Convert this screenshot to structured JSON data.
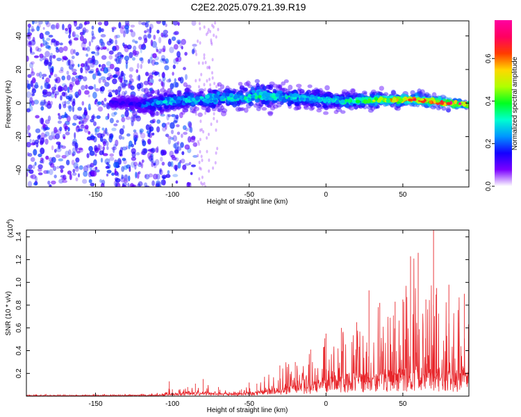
{
  "title": "C2E2.2025.079.21.39.R19",
  "chart_data": [
    {
      "type": "heatmap",
      "title": "C2E2.2025.079.21.39.R19",
      "xlabel": "Height of straight line (km)",
      "ylabel": "Frequency (Hz)",
      "xlim": [
        -195,
        93
      ],
      "ylim": [
        -50,
        49
      ],
      "x_ticks": [
        -150,
        -100,
        -50,
        0,
        50
      ],
      "y_ticks": [
        -40,
        -20,
        0,
        20,
        40
      ],
      "colorbar": {
        "label": "Normalized spectral amplitude",
        "range": [
          0.0,
          0.78
        ],
        "ticks": [
          0.0,
          0.2,
          0.4,
          0.6
        ],
        "colormap": [
          "#ffffff",
          "#7b00ff",
          "#1400ff",
          "#0096ff",
          "#00ffd0",
          "#00ff20",
          "#b0ff00",
          "#ffd800",
          "#ff3c00",
          "#ff0060",
          "#ff00a0"
        ]
      },
      "band": {
        "x": [
          -195,
          -130,
          -120,
          -110,
          -100,
          -90,
          -80,
          -70,
          -60,
          -50,
          -45,
          -40,
          -30,
          -20,
          -10,
          0,
          10,
          20,
          30,
          40,
          50,
          60,
          70,
          80,
          93
        ],
        "center_hz": [
          0,
          0,
          -1,
          0,
          1,
          2,
          2,
          3,
          3,
          3,
          5,
          4,
          4,
          3,
          3,
          2,
          1,
          1,
          2,
          2,
          2,
          2,
          1,
          0,
          -1
        ],
        "half_width_hz": [
          0,
          4,
          5,
          7,
          8,
          8,
          8,
          9,
          9,
          9,
          12,
          10,
          9,
          8,
          7,
          7,
          7,
          6,
          6,
          5,
          5,
          5,
          4,
          4,
          3
        ],
        "peak_amplitude": [
          0.05,
          0.12,
          0.15,
          0.22,
          0.25,
          0.26,
          0.27,
          0.28,
          0.29,
          0.3,
          0.32,
          0.3,
          0.28,
          0.27,
          0.26,
          0.28,
          0.3,
          0.38,
          0.45,
          0.55,
          0.6,
          0.65,
          0.72,
          0.76,
          0.7
        ]
      },
      "noise_region": {
        "x_range": [
          -195,
          -105
        ],
        "amplitude": 0.06
      }
    },
    {
      "type": "line",
      "xlabel": "Height of straight line (km)",
      "ylabel": "SNR (10 * v/v)",
      "scale_label": "(x10",
      "scale_exponent": "4",
      "xlim": [
        -195,
        93
      ],
      "ylim": [
        0,
        1.46
      ],
      "x_ticks": [
        -150,
        -100,
        -50,
        0,
        50
      ],
      "y_ticks": [
        0.2,
        0.4,
        0.6,
        0.8,
        1.0,
        1.2,
        1.4
      ],
      "color": "#e8262b",
      "envelope": {
        "x": [
          -195,
          -150,
          -120,
          -105,
          -102,
          -100,
          -95,
          -90,
          -85,
          -80,
          -70,
          -60,
          -55,
          -50,
          -45,
          -40,
          -30,
          -20,
          -10,
          0,
          10,
          20,
          28,
          35,
          45,
          50,
          55,
          60,
          65,
          70,
          72,
          80,
          90,
          93
        ],
        "max": [
          0.015,
          0.015,
          0.02,
          0.03,
          0.13,
          0.06,
          0.06,
          0.08,
          0.11,
          0.15,
          0.08,
          0.04,
          0.06,
          0.12,
          0.11,
          0.17,
          0.27,
          0.3,
          0.41,
          0.55,
          0.6,
          0.65,
          0.93,
          0.82,
          0.83,
          0.85,
          1.23,
          1.26,
          0.85,
          1.46,
          0.95,
          0.98,
          0.9,
          0.88
        ],
        "base": [
          0.005,
          0.005,
          0.008,
          0.01,
          0.02,
          0.02,
          0.02,
          0.025,
          0.03,
          0.03,
          0.02,
          0.015,
          0.02,
          0.03,
          0.03,
          0.04,
          0.06,
          0.08,
          0.1,
          0.13,
          0.15,
          0.16,
          0.17,
          0.18,
          0.19,
          0.2,
          0.2,
          0.21,
          0.21,
          0.2,
          0.2,
          0.19,
          0.18,
          0.17
        ]
      }
    }
  ]
}
